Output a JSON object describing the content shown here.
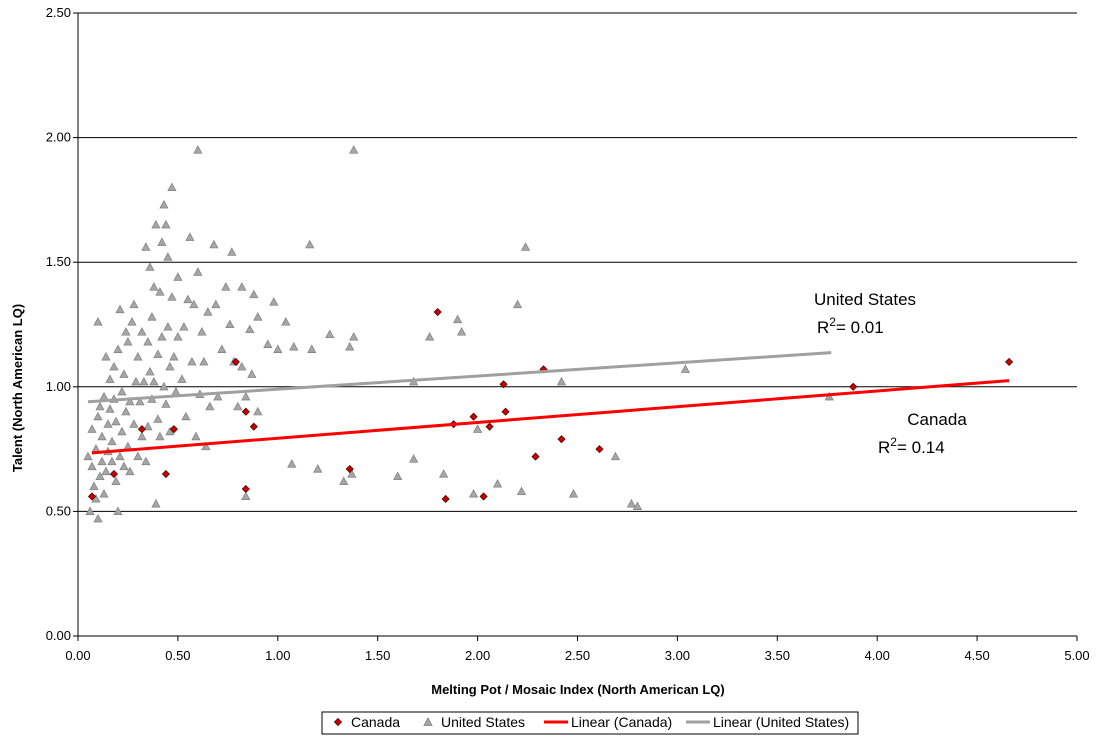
{
  "chart_data": {
    "type": "scatter",
    "xlabel": "Melting Pot / Mosaic Index (North American LQ)",
    "ylabel": "Talent (North American LQ)",
    "xlim": [
      0,
      5
    ],
    "ylim": [
      0,
      2.5
    ],
    "x_ticks": [
      "0.00",
      "0.50",
      "1.00",
      "1.50",
      "2.00",
      "2.50",
      "3.00",
      "3.50",
      "4.00",
      "4.50",
      "5.00"
    ],
    "y_ticks": [
      "0.00",
      "0.50",
      "1.00",
      "1.50",
      "2.00",
      "2.50"
    ],
    "grid": "horizontal",
    "legend_position": "bottom",
    "series": [
      {
        "name": "Canada",
        "marker": "diamond",
        "color": "#cc0000",
        "points": [
          [
            0.07,
            0.56
          ],
          [
            0.18,
            0.65
          ],
          [
            0.32,
            0.83
          ],
          [
            0.44,
            0.65
          ],
          [
            0.48,
            0.83
          ],
          [
            0.79,
            1.1
          ],
          [
            0.84,
            0.9
          ],
          [
            0.88,
            0.84
          ],
          [
            0.84,
            0.59
          ],
          [
            1.36,
            0.67
          ],
          [
            1.8,
            1.3
          ],
          [
            1.88,
            0.85
          ],
          [
            1.84,
            0.55
          ],
          [
            1.98,
            0.88
          ],
          [
            2.03,
            0.56
          ],
          [
            2.06,
            0.84
          ],
          [
            2.13,
            1.01
          ],
          [
            2.14,
            0.9
          ],
          [
            2.29,
            0.72
          ],
          [
            2.33,
            1.07
          ],
          [
            2.42,
            0.79
          ],
          [
            2.61,
            0.75
          ],
          [
            3.88,
            1.0
          ],
          [
            4.66,
            1.1
          ]
        ]
      },
      {
        "name": "United States",
        "marker": "triangle",
        "color": "#a6a6a6",
        "points": [
          [
            0.05,
            0.72
          ],
          [
            0.06,
            0.5
          ],
          [
            0.07,
            0.68
          ],
          [
            0.07,
            0.83
          ],
          [
            0.08,
            0.6
          ],
          [
            0.09,
            0.75
          ],
          [
            0.09,
            0.55
          ],
          [
            0.1,
            0.47
          ],
          [
            0.1,
            0.88
          ],
          [
            0.1,
            1.26
          ],
          [
            0.11,
            0.64
          ],
          [
            0.11,
            0.92
          ],
          [
            0.12,
            0.7
          ],
          [
            0.12,
            0.8
          ],
          [
            0.13,
            0.57
          ],
          [
            0.13,
            0.96
          ],
          [
            0.14,
            1.12
          ],
          [
            0.14,
            0.66
          ],
          [
            0.15,
            0.74
          ],
          [
            0.15,
            0.85
          ],
          [
            0.16,
            1.03
          ],
          [
            0.16,
            0.91
          ],
          [
            0.17,
            0.7
          ],
          [
            0.17,
            0.78
          ],
          [
            0.18,
            1.08
          ],
          [
            0.18,
            0.95
          ],
          [
            0.19,
            0.62
          ],
          [
            0.19,
            0.86
          ],
          [
            0.2,
            0.5
          ],
          [
            0.2,
            1.15
          ],
          [
            0.21,
            0.72
          ],
          [
            0.21,
            1.31
          ],
          [
            0.22,
            0.98
          ],
          [
            0.22,
            0.82
          ],
          [
            0.23,
            1.05
          ],
          [
            0.23,
            0.68
          ],
          [
            0.24,
            1.22
          ],
          [
            0.24,
            0.9
          ],
          [
            0.25,
            0.76
          ],
          [
            0.25,
            1.18
          ],
          [
            0.26,
            0.66
          ],
          [
            0.26,
            0.94
          ],
          [
            0.27,
            1.26
          ],
          [
            0.28,
            0.85
          ],
          [
            0.28,
            1.33
          ],
          [
            0.29,
            1.02
          ],
          [
            0.3,
            0.72
          ],
          [
            0.3,
            1.12
          ],
          [
            0.31,
            0.94
          ],
          [
            0.32,
            0.8
          ],
          [
            0.32,
            1.22
          ],
          [
            0.33,
            1.02
          ],
          [
            0.34,
            0.7
          ],
          [
            0.34,
            1.56
          ],
          [
            0.35,
            1.18
          ],
          [
            0.35,
            0.84
          ],
          [
            0.36,
            1.48
          ],
          [
            0.36,
            1.06
          ],
          [
            0.37,
            1.28
          ],
          [
            0.37,
            0.95
          ],
          [
            0.38,
            1.4
          ],
          [
            0.38,
            1.02
          ],
          [
            0.39,
            0.53
          ],
          [
            0.39,
            1.65
          ],
          [
            0.4,
            1.13
          ],
          [
            0.4,
            0.87
          ],
          [
            0.41,
            1.38
          ],
          [
            0.41,
            0.8
          ],
          [
            0.42,
            1.58
          ],
          [
            0.42,
            1.2
          ],
          [
            0.43,
            1.73
          ],
          [
            0.43,
            1.0
          ],
          [
            0.44,
            1.65
          ],
          [
            0.44,
            0.93
          ],
          [
            0.45,
            1.24
          ],
          [
            0.45,
            1.52
          ],
          [
            0.46,
            1.08
          ],
          [
            0.46,
            0.82
          ],
          [
            0.47,
            1.8
          ],
          [
            0.47,
            1.36
          ],
          [
            0.48,
            1.12
          ],
          [
            0.49,
            0.98
          ],
          [
            0.5,
            1.44
          ],
          [
            0.5,
            1.2
          ],
          [
            0.52,
            1.03
          ],
          [
            0.53,
            1.24
          ],
          [
            0.54,
            0.88
          ],
          [
            0.55,
            1.35
          ],
          [
            0.56,
            1.6
          ],
          [
            0.57,
            1.1
          ],
          [
            0.58,
            1.33
          ],
          [
            0.59,
            0.8
          ],
          [
            0.6,
            1.95
          ],
          [
            0.6,
            1.46
          ],
          [
            0.61,
            0.97
          ],
          [
            0.62,
            1.22
          ],
          [
            0.63,
            1.1
          ],
          [
            0.64,
            0.76
          ],
          [
            0.65,
            1.3
          ],
          [
            0.66,
            0.92
          ],
          [
            0.68,
            1.57
          ],
          [
            0.69,
            1.33
          ],
          [
            0.7,
            0.96
          ],
          [
            0.72,
            1.15
          ],
          [
            0.74,
            1.4
          ],
          [
            0.76,
            1.25
          ],
          [
            0.77,
            1.54
          ],
          [
            0.78,
            1.1
          ],
          [
            0.8,
            0.92
          ],
          [
            0.82,
            1.08
          ],
          [
            0.82,
            1.4
          ],
          [
            0.84,
            0.96
          ],
          [
            0.84,
            0.56
          ],
          [
            0.86,
            1.23
          ],
          [
            0.87,
            1.05
          ],
          [
            0.88,
            1.37
          ],
          [
            0.9,
            1.28
          ],
          [
            0.9,
            0.9
          ],
          [
            0.95,
            1.17
          ],
          [
            0.98,
            1.34
          ],
          [
            1.0,
            1.15
          ],
          [
            1.04,
            1.26
          ],
          [
            1.07,
            0.69
          ],
          [
            1.08,
            1.16
          ],
          [
            1.16,
            1.57
          ],
          [
            1.17,
            1.15
          ],
          [
            1.2,
            0.67
          ],
          [
            1.26,
            1.21
          ],
          [
            1.33,
            0.62
          ],
          [
            1.36,
            1.16
          ],
          [
            1.38,
            1.95
          ],
          [
            1.38,
            1.2
          ],
          [
            1.37,
            0.65
          ],
          [
            1.6,
            0.64
          ],
          [
            1.68,
            1.02
          ],
          [
            1.68,
            0.71
          ],
          [
            1.76,
            1.2
          ],
          [
            1.83,
            0.65
          ],
          [
            1.9,
            1.27
          ],
          [
            1.92,
            1.22
          ],
          [
            1.98,
            0.57
          ],
          [
            2.0,
            0.83
          ],
          [
            2.1,
            0.61
          ],
          [
            2.2,
            1.33
          ],
          [
            2.22,
            0.58
          ],
          [
            2.24,
            1.56
          ],
          [
            2.42,
            1.02
          ],
          [
            2.48,
            0.57
          ],
          [
            2.69,
            0.72
          ],
          [
            2.77,
            0.53
          ],
          [
            2.8,
            0.52
          ],
          [
            3.04,
            1.07
          ],
          [
            3.76,
            0.96
          ]
        ]
      }
    ],
    "trendlines": [
      {
        "name": "Linear (Canada)",
        "color": "#ff0000",
        "x": [
          0.07,
          4.66
        ],
        "y": [
          0.735,
          1.025
        ]
      },
      {
        "name": "Linear (United States)",
        "color": "#a0a0a0",
        "x": [
          0.05,
          3.77
        ],
        "y": [
          0.94,
          1.137
        ]
      }
    ],
    "annotations": [
      {
        "series": "United States",
        "label": "United States",
        "r2": "= 0.01"
      },
      {
        "series": "Canada",
        "label": "Canada",
        "r2": "= 0.14"
      }
    ],
    "legend": [
      "Canada",
      "United States",
      "Linear (Canada)",
      "Linear (United States)"
    ]
  }
}
